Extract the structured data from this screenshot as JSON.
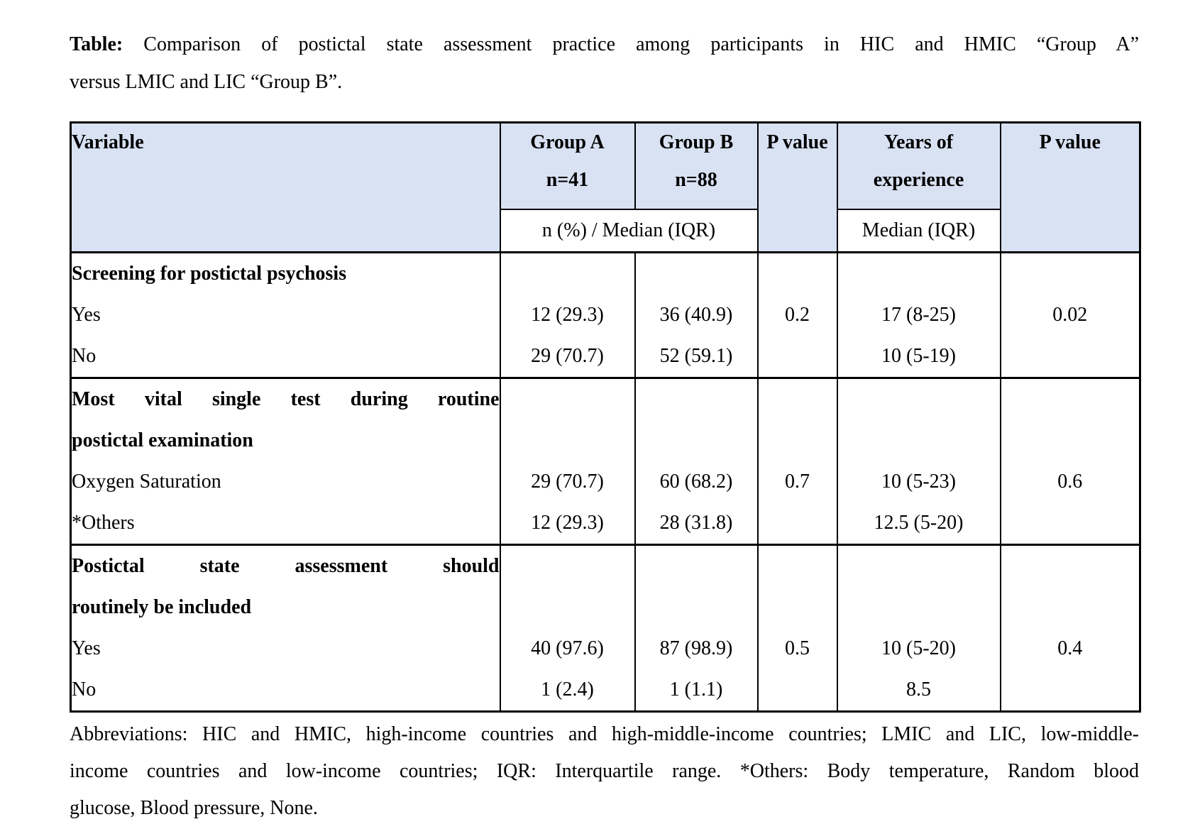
{
  "title": {
    "prefix": "Table:",
    "line1_rest": "Comparison of postictal state assessment practice among participants in HIC and HMIC “Group A”",
    "line2": "versus LMIC and LIC “Group B”."
  },
  "table": {
    "header_fill": "#d9e2f3",
    "columns": {
      "variable": "Variable",
      "group_a": [
        "Group A",
        "n=41"
      ],
      "group_b": [
        "Group B",
        "n=88"
      ],
      "p_value": "P value",
      "years": [
        "Years of",
        "experience"
      ],
      "p_value_2": "P value",
      "subheader_groups": "n (%) / Median (IQR)",
      "subheader_years": "Median (IQR)"
    },
    "sections": [
      {
        "label_lines": [
          "Screening for postictal psychosis"
        ],
        "rows": [
          {
            "variable": "Yes",
            "group_a": "12 (29.3)",
            "group_b": "36 (40.9)",
            "p_value": "0.2",
            "years": "17 (8-25)",
            "p_value_2": "0.02"
          },
          {
            "variable": "No",
            "group_a": "29 (70.7)",
            "group_b": "52 (59.1)",
            "p_value": "",
            "years": "10 (5-19)",
            "p_value_2": ""
          }
        ]
      },
      {
        "label_lines": [
          "Most vital single test during routine",
          "postictal examination"
        ],
        "rows": [
          {
            "variable": "Oxygen Saturation",
            "group_a": "29 (70.7)",
            "group_b": "60 (68.2)",
            "p_value": "0.7",
            "years": "10 (5-23)",
            "p_value_2": "0.6"
          },
          {
            "variable": "*Others",
            "group_a": "12 (29.3)",
            "group_b": "28 (31.8)",
            "p_value": "",
            "years": "12.5 (5-20)",
            "p_value_2": ""
          }
        ]
      },
      {
        "label_lines": [
          "Postictal state assessment should",
          "routinely be included"
        ],
        "rows": [
          {
            "variable": "Yes",
            "group_a": "40 (97.6)",
            "group_b": "87 (98.9)",
            "p_value": "0.5",
            "years": "10 (5-20)",
            "p_value_2": "0.4"
          },
          {
            "variable": "No",
            "group_a": "1 (2.4)",
            "group_b": "1 (1.1)",
            "p_value": "",
            "years": "8.5",
            "p_value_2": ""
          }
        ]
      }
    ]
  },
  "footnote": {
    "lines": [
      "Abbreviations: HIC and HMIC, high-income countries and high-middle-income countries; LMIC and LIC, low-middle-",
      "income countries and low-income countries; IQR: Interquartile range.  *Others: Body temperature, Random blood",
      "glucose, Blood pressure, None."
    ]
  }
}
